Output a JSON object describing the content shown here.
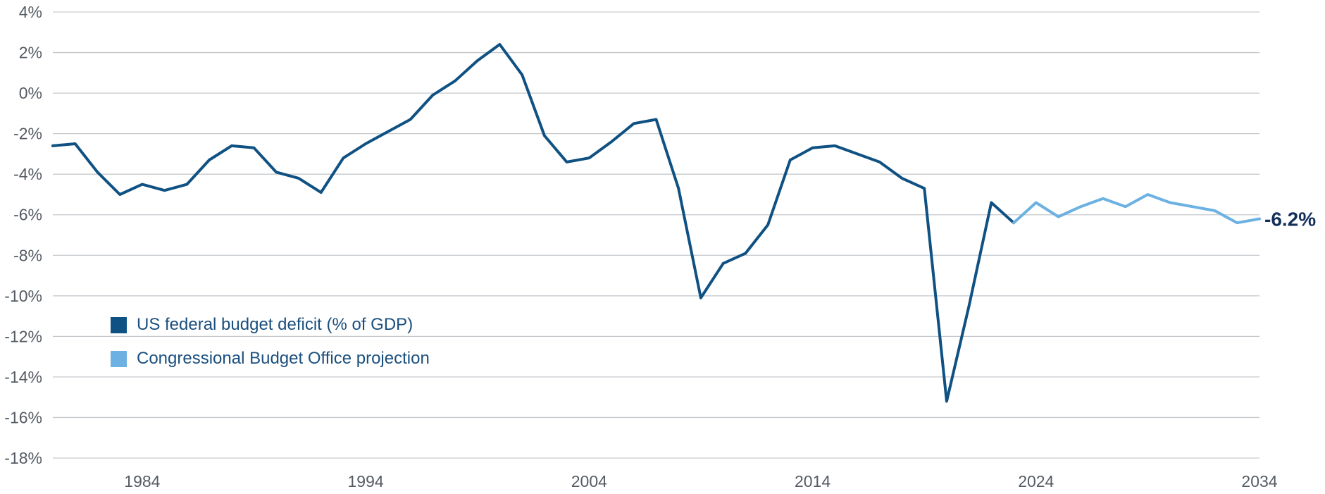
{
  "chart_data": {
    "type": "line",
    "title": "",
    "xlabel": "",
    "ylabel": "",
    "xlim": [
      1980,
      2034
    ],
    "ylim": [
      -18,
      4
    ],
    "x_tick_labels": [
      "1984",
      "1994",
      "2004",
      "2014",
      "2024",
      "2034"
    ],
    "x_ticks": [
      1984,
      1994,
      2004,
      2014,
      2024,
      2034
    ],
    "y_tick_labels": [
      "4%",
      "2%",
      "0%",
      "-2%",
      "-4%",
      "-6%",
      "-8%",
      "-10%",
      "-12%",
      "-14%",
      "-16%",
      "-18%"
    ],
    "y_ticks": [
      4,
      2,
      0,
      -2,
      -4,
      -6,
      -8,
      -10,
      -12,
      -14,
      -16,
      -18
    ],
    "grid": "horizontal",
    "legend_position": "bottom-left",
    "series": [
      {
        "name": "US federal budget deficit (% of GDP)",
        "color": "#0f5182",
        "x": [
          1980,
          1981,
          1982,
          1983,
          1984,
          1985,
          1986,
          1987,
          1988,
          1989,
          1990,
          1991,
          1992,
          1993,
          1994,
          1995,
          1996,
          1997,
          1998,
          1999,
          2000,
          2001,
          2002,
          2003,
          2004,
          2005,
          2006,
          2007,
          2008,
          2009,
          2010,
          2011,
          2012,
          2013,
          2014,
          2015,
          2016,
          2017,
          2018,
          2019,
          2020,
          2021,
          2022,
          2023
        ],
        "values": [
          -2.6,
          -2.5,
          -3.9,
          -5.0,
          -4.5,
          -4.8,
          -4.5,
          -3.3,
          -2.6,
          -2.7,
          -3.9,
          -4.2,
          -4.9,
          -3.2,
          -2.5,
          -1.9,
          -1.3,
          -0.1,
          0.6,
          1.6,
          2.4,
          0.9,
          -2.1,
          -3.4,
          -3.2,
          -2.4,
          -1.5,
          -1.3,
          -4.7,
          -10.1,
          -8.4,
          -7.9,
          -6.5,
          -3.3,
          -2.7,
          -2.6,
          -3.0,
          -3.4,
          -4.2,
          -4.7,
          -15.2,
          -10.5,
          -5.4,
          -6.4
        ]
      },
      {
        "name": "Congressional Budget Office projection",
        "color": "#6cb1e1",
        "x": [
          2023,
          2024,
          2025,
          2026,
          2027,
          2028,
          2029,
          2030,
          2031,
          2032,
          2033,
          2034
        ],
        "values": [
          -6.4,
          -5.4,
          -6.1,
          -5.6,
          -5.2,
          -5.6,
          -5.0,
          -5.4,
          -5.6,
          -5.8,
          -6.4,
          -6.2
        ]
      }
    ],
    "end_label": "-6.2%"
  }
}
